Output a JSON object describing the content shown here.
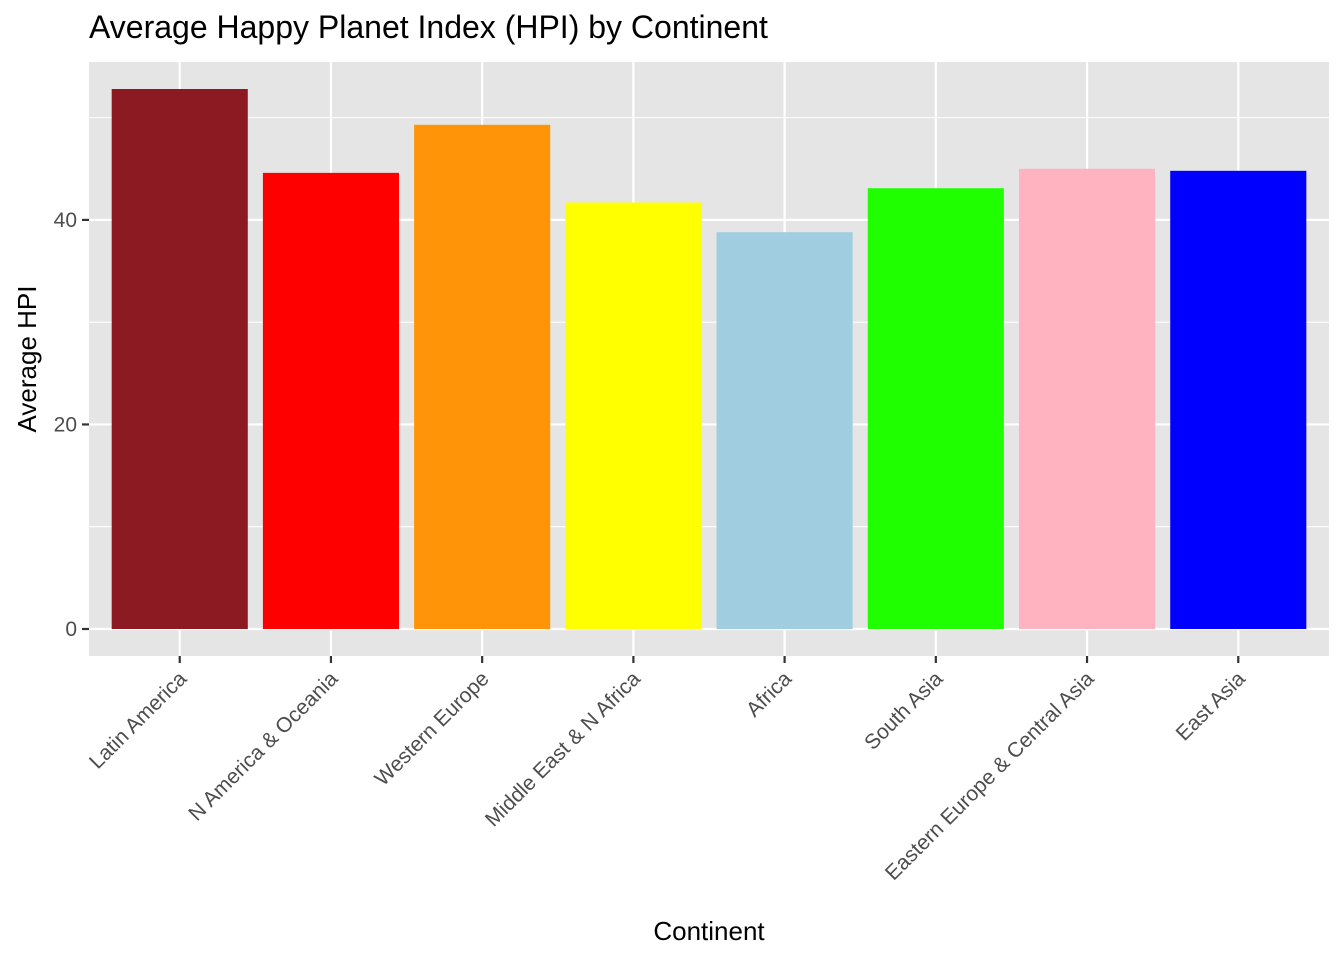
{
  "chart_data": {
    "type": "bar",
    "title": "Average Happy Planet Index (HPI) by Continent",
    "xlabel": "Continent",
    "ylabel": "Average HPI",
    "categories": [
      "Latin America",
      "N America & Oceania",
      "Western Europe",
      "Middle East & N Africa",
      "Africa",
      "South Asia",
      "Eastern Europe & Central Asia",
      "East Asia"
    ],
    "values": [
      52.8,
      44.6,
      49.3,
      41.7,
      38.8,
      43.1,
      45.0,
      44.8
    ],
    "colors": [
      "#8b1a22",
      "#ff0000",
      "#ff9408",
      "#ffff00",
      "#a0cde0",
      "#1fff00",
      "#ffb3c1",
      "#0000ff"
    ],
    "ylim": [
      -2.64,
      55.44
    ],
    "yticks": [
      0,
      20,
      40
    ],
    "grid": true,
    "panel_background": "#e5e5e5",
    "legend": "none"
  }
}
